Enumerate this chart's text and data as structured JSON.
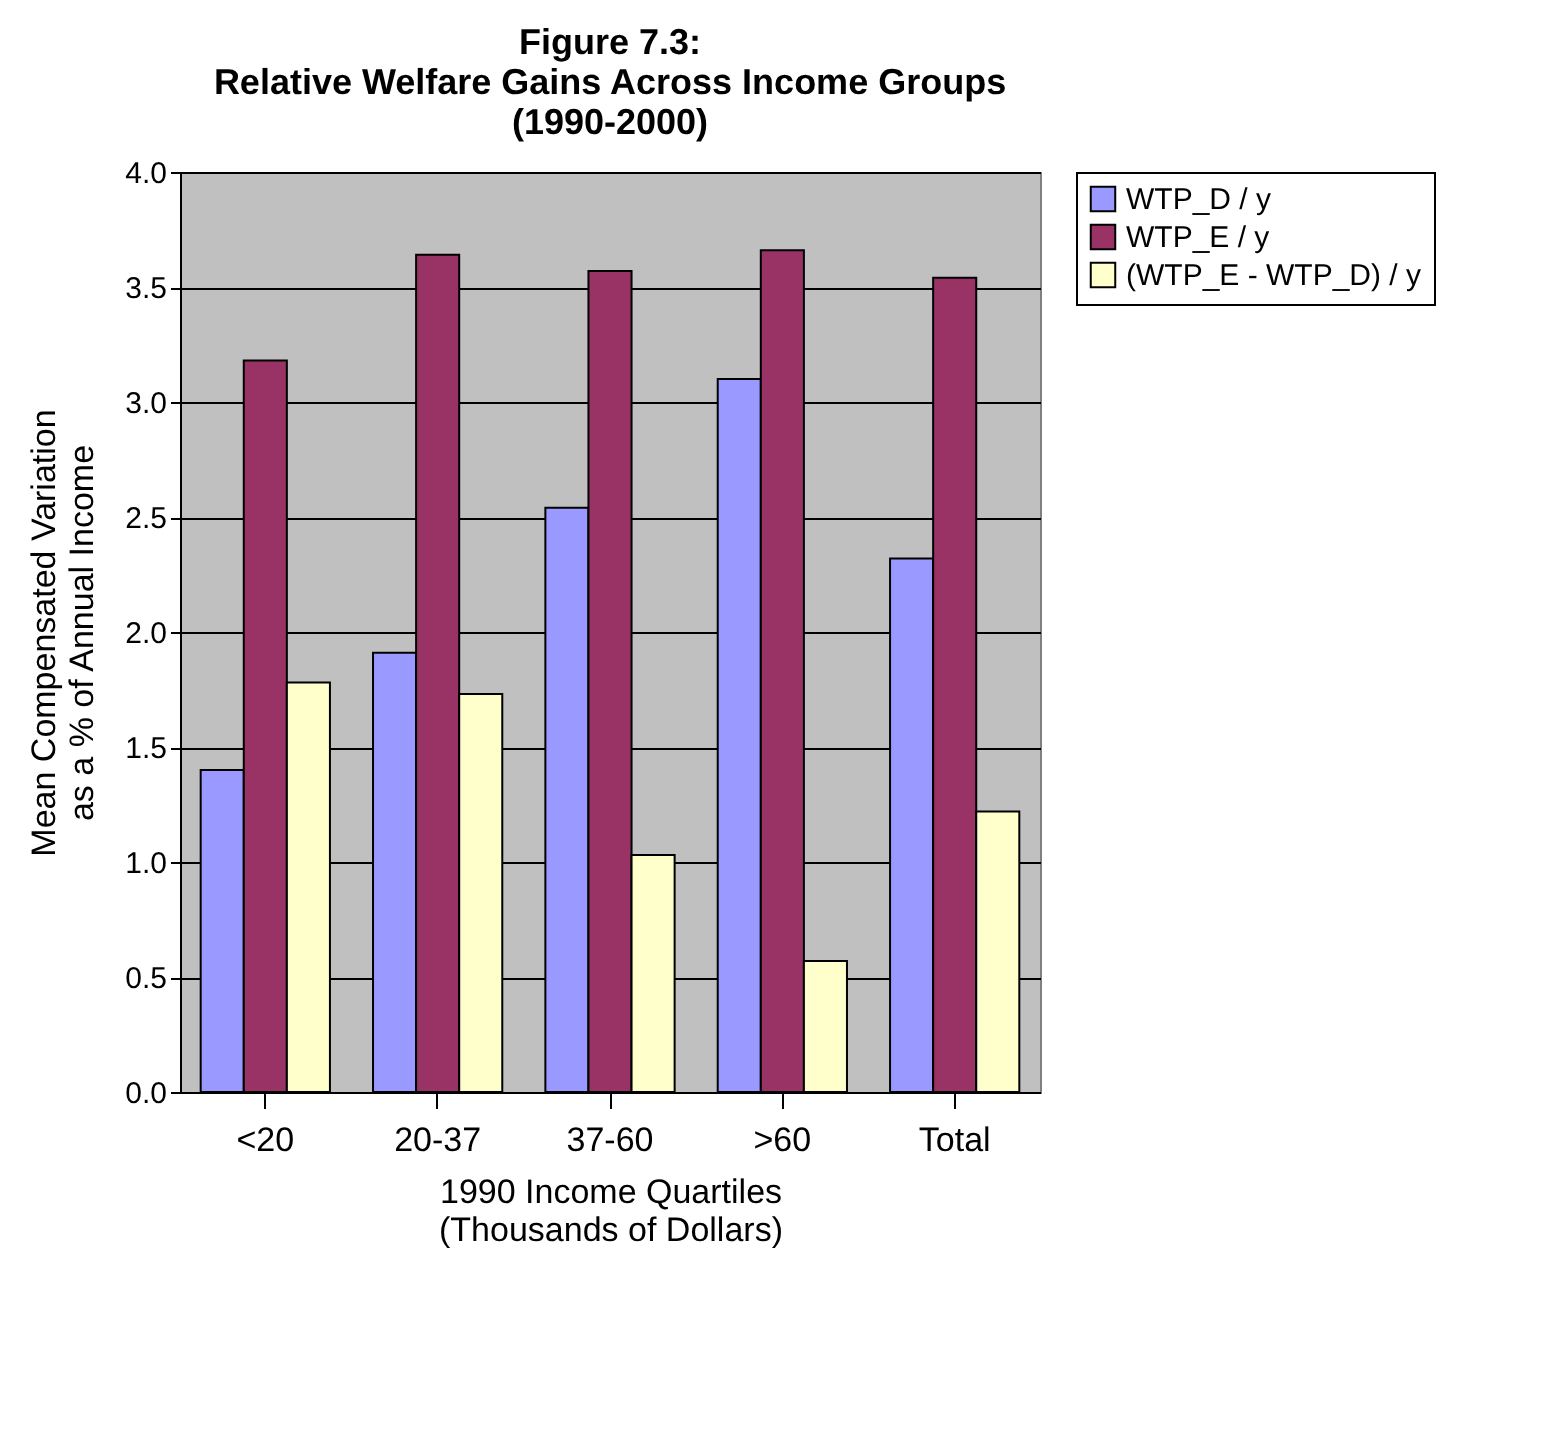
{
  "chart_data": {
    "type": "bar",
    "title": "Figure 7.3:\nRelative Welfare Gains Across Income Groups\n(1990-2000)",
    "xlabel": "1990 Income Quartiles\n(Thousands of Dollars)",
    "ylabel": "Mean Compensated Variation\nas a % of Annual Income",
    "categories": [
      "<20",
      "20-37",
      "37-60",
      ">60",
      "Total"
    ],
    "series": [
      {
        "name": "WTP_D / y",
        "color": "#9999ff",
        "values": [
          1.4,
          1.91,
          2.54,
          3.1,
          2.32
        ]
      },
      {
        "name": "WTP_E / y",
        "color": "#993366",
        "values": [
          3.18,
          3.64,
          3.57,
          3.66,
          3.54
        ]
      },
      {
        "name": "(WTP_E - WTP_D) / y",
        "color": "#ffffcc",
        "values": [
          1.78,
          1.73,
          1.03,
          0.57,
          1.22
        ]
      }
    ],
    "ylim": [
      0,
      4
    ],
    "yticks": [
      {
        "value": 0,
        "label": "0.0"
      },
      {
        "value": 0.5,
        "label": "0.5"
      },
      {
        "value": 1,
        "label": "1.0"
      },
      {
        "value": 1.5,
        "label": "1.5"
      },
      {
        "value": 2,
        "label": "2.0"
      },
      {
        "value": 2.5,
        "label": "2.5"
      },
      {
        "value": 3,
        "label": "3.0"
      },
      {
        "value": 3.5,
        "label": "3.5"
      },
      {
        "value": 4,
        "label": "4.0"
      }
    ],
    "grid": "y",
    "legend": "right"
  }
}
